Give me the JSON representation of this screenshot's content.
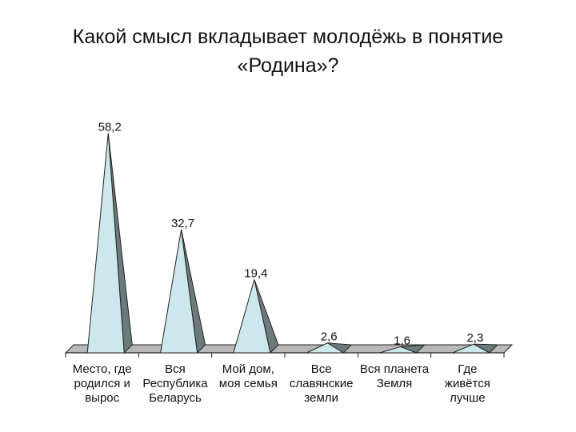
{
  "title_line1": "Какой смысл вкладывает молодёжь в понятие",
  "title_line2": "«Родина»?",
  "chart_data": {
    "type": "bar",
    "style": "3d-cone",
    "title": "Какой смысл вкладывает молодёжь в понятие «Родина»?",
    "categories": [
      [
        "Место, где",
        "родился и",
        "вырос"
      ],
      [
        "Вся",
        "Республика",
        "Беларусь"
      ],
      [
        "Мой дом,",
        "моя семья"
      ],
      [
        "Все",
        "славянские",
        "земли"
      ],
      [
        "Вся планета",
        "Земля"
      ],
      [
        "Где",
        "живётся",
        "лучше"
      ]
    ],
    "values": [
      58.2,
      32.7,
      19.4,
      2.6,
      1.6,
      2.3
    ],
    "data_labels": [
      "58,2",
      "32,7",
      "19,4",
      "2,6",
      "1,6",
      "2,3"
    ],
    "ylim": [
      0,
      60
    ],
    "grid": false,
    "legend": "none",
    "colors": {
      "cone_face": "#cce8ec",
      "cone_shadow": "#6b7b7d",
      "floor": "#b8b8b8",
      "outline": "#222222"
    }
  }
}
